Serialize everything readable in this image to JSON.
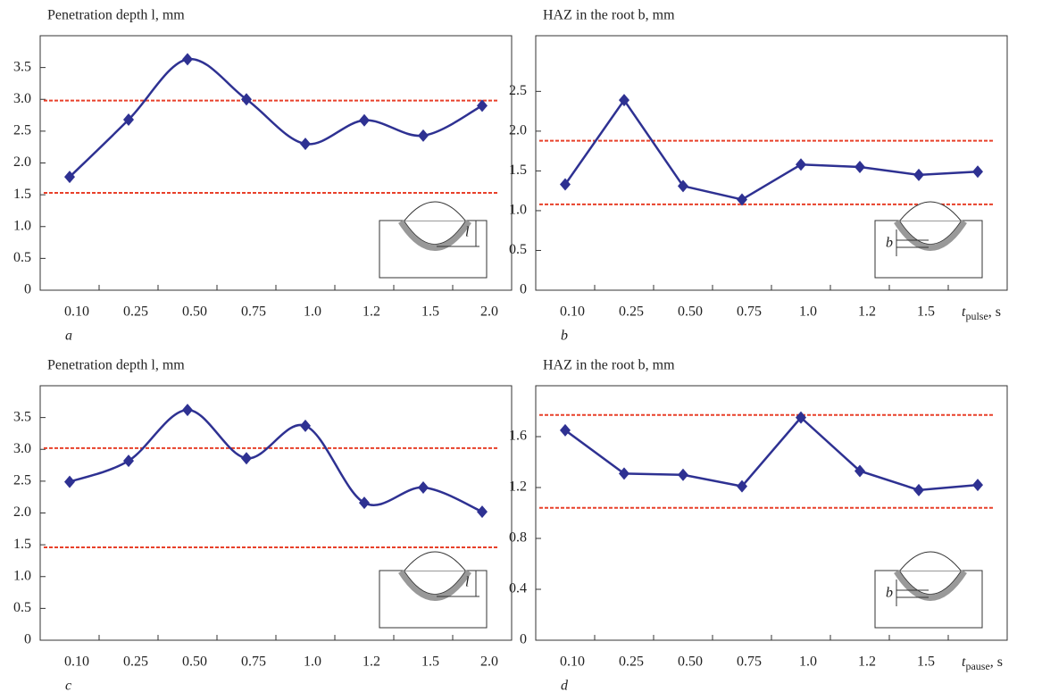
{
  "chart_data": [
    {
      "type": "line",
      "smooth": true,
      "title": "Penetration depth l, mm",
      "panel_label": "a",
      "inset_label": "l",
      "categories": [
        "0.10",
        "0.25",
        "0.50",
        "0.75",
        "1.0",
        "1.2",
        "1.5",
        "2.0"
      ],
      "values": [
        1.78,
        2.68,
        3.63,
        3.0,
        2.3,
        2.67,
        2.43,
        2.9
      ],
      "color": "#2e3192",
      "marker": "diamond",
      "ylim": [
        0,
        4
      ],
      "yticks": [
        0,
        0.5,
        {
          "value": 1,
          "label": "1.0"
        },
        1.5,
        {
          "value": 2,
          "label": "2.0"
        },
        2.5,
        {
          "value": 3,
          "label": "3.0"
        },
        3.5
      ],
      "reference_lines": [
        2.98,
        1.53
      ],
      "reference_color": "#e8402a"
    },
    {
      "type": "line",
      "smooth": false,
      "title": "HAZ in the root b, mm",
      "panel_label": "b",
      "inset_label": "b",
      "categories": [
        "0.10",
        "0.25",
        "0.50",
        "0.75",
        "1.0",
        "1.2",
        "1.5",
        null
      ],
      "xlabel": {
        "symbol": "t",
        "subscript": "pulse",
        "unit": ", s"
      },
      "values": [
        1.33,
        2.39,
        1.31,
        1.14,
        1.58,
        1.55,
        1.45,
        1.49
      ],
      "color": "#2e3192",
      "marker": "diamond",
      "ylim": [
        0,
        3.2
      ],
      "yticks": [
        0,
        0.5,
        {
          "value": 1,
          "label": "1.0"
        },
        1.5,
        {
          "value": 2,
          "label": "2.0"
        },
        2.5
      ],
      "reference_lines": [
        1.88,
        1.08
      ],
      "reference_color": "#e8402a"
    },
    {
      "type": "line",
      "smooth": true,
      "title": "Penetration depth l, mm",
      "panel_label": "c",
      "inset_label": "l",
      "categories": [
        "0.10",
        "0.25",
        "0.50",
        "0.75",
        "1.0",
        "1.2",
        "1.5",
        "2.0"
      ],
      "values": [
        2.49,
        2.82,
        3.62,
        2.86,
        3.37,
        2.16,
        2.4,
        2.02
      ],
      "color": "#2e3192",
      "marker": "diamond",
      "ylim": [
        0,
        4
      ],
      "yticks": [
        0,
        0.5,
        {
          "value": 1,
          "label": "1.0"
        },
        1.5,
        {
          "value": 2,
          "label": "2.0"
        },
        2.5,
        {
          "value": 3,
          "label": "3.0"
        },
        3.5
      ],
      "reference_lines": [
        3.02,
        1.46
      ],
      "reference_color": "#e8402a"
    },
    {
      "type": "line",
      "smooth": false,
      "title": "HAZ in the root b, mm",
      "panel_label": "d",
      "inset_label": "b",
      "categories": [
        "0.10",
        "0.25",
        "0.50",
        "0.75",
        "1.0",
        "1.2",
        "1.5",
        null
      ],
      "xlabel": {
        "symbol": "t",
        "subscript": "pause",
        "unit": ", s"
      },
      "values": [
        1.65,
        1.31,
        1.3,
        1.21,
        1.75,
        1.33,
        1.18,
        1.22
      ],
      "color": "#2e3192",
      "marker": "diamond",
      "ylim": [
        0,
        2
      ],
      "yticks": [
        0,
        0.4,
        0.8,
        1.2,
        1.6
      ],
      "reference_lines": [
        1.77,
        1.04
      ],
      "reference_color": "#e8402a"
    }
  ]
}
